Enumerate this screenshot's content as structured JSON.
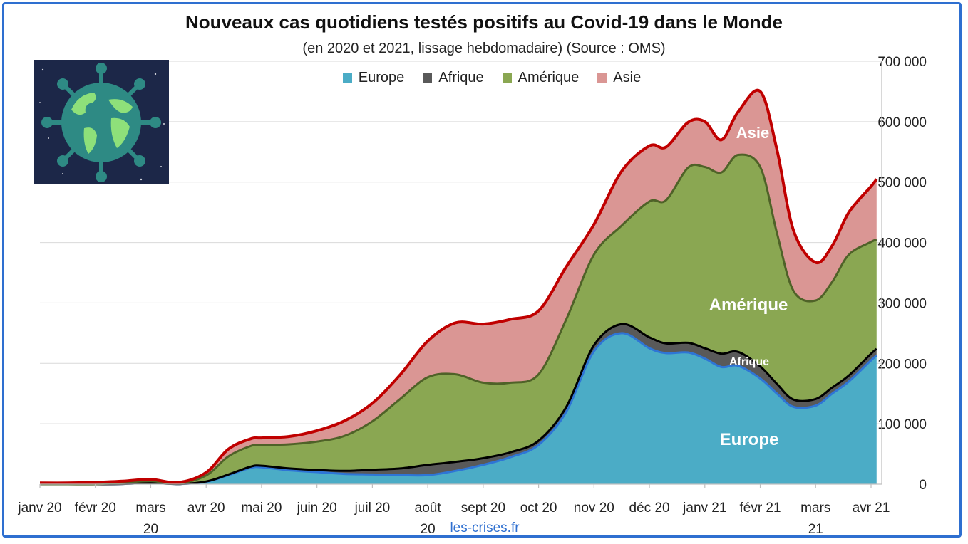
{
  "chart_data": {
    "type": "area",
    "stacked": true,
    "title": "Nouveaux cas quotidiens testés positifs au Covid-19 dans le Monde",
    "subtitle": "(en 2020 et 2021, lissage hebdomadaire) (Source : OMS)",
    "source_label": "les-crises.fr",
    "yaxis_position": "right",
    "ylim": [
      0,
      700000
    ],
    "yticks": [
      0,
      100000,
      200000,
      300000,
      400000,
      500000,
      600000,
      700000
    ],
    "ytick_labels": [
      "0",
      "100 000",
      "200 000",
      "300 000",
      "400 000",
      "500 000",
      "600 000",
      "700 000"
    ],
    "grid": true,
    "legend_placement": "top-center",
    "x_months": [
      "janv 20",
      "févr 20",
      "mars 20",
      "avr 20",
      "mai 20",
      "juin 20",
      "juil 20",
      "août 20",
      "sept 20",
      "oct 20",
      "nov 20",
      "déc 20",
      "janv 21",
      "févr 21",
      "mars 21",
      "avr 21"
    ],
    "x_month_label_lines": [
      [
        "janv 20"
      ],
      [
        "févr 20"
      ],
      [
        "mars",
        "20"
      ],
      [
        "avr 20"
      ],
      [
        "mai 20"
      ],
      [
        "juin 20"
      ],
      [
        "juil 20"
      ],
      [
        "août",
        "20"
      ],
      [
        "sept 20"
      ],
      [
        "oct 20"
      ],
      [
        "nov 20"
      ],
      [
        "déc 20"
      ],
      [
        "janv 21"
      ],
      [
        "févr 21"
      ],
      [
        "mars",
        "21"
      ],
      [
        "avr 21"
      ]
    ],
    "x": [
      0,
      0.5,
      1,
      1.5,
      2,
      2.5,
      3,
      3.4,
      3.8,
      4,
      4.5,
      5,
      5.5,
      6,
      6.5,
      7,
      7.5,
      8,
      8.5,
      9,
      9.5,
      10,
      10.5,
      11,
      11.3,
      11.7,
      12,
      12.3,
      12.6,
      13,
      13.3,
      13.6,
      14,
      14.3,
      14.6,
      15,
      15.1
    ],
    "x_unit": "months since janv 20",
    "series": [
      {
        "name": "Europe",
        "color": "#4bacc6",
        "line_color": "#2e75d6",
        "values": [
          0,
          0,
          0,
          500,
          2000,
          300,
          4000,
          15000,
          27000,
          28000,
          23000,
          20000,
          17000,
          16000,
          15000,
          15000,
          22000,
          32000,
          45000,
          65000,
          120000,
          220000,
          250000,
          225000,
          217000,
          218000,
          208000,
          194000,
          196000,
          175000,
          150000,
          128000,
          130000,
          150000,
          170000,
          205000,
          213000
        ]
      },
      {
        "name": "Afrique",
        "color": "#595959",
        "line_color": "#000000",
        "values": [
          0,
          0,
          0,
          0,
          0,
          0,
          500,
          1000,
          2000,
          2500,
          3000,
          3500,
          5000,
          8000,
          11000,
          17000,
          15000,
          11000,
          8000,
          7000,
          8000,
          10000,
          15000,
          18000,
          16000,
          16000,
          17000,
          22000,
          23000,
          20000,
          16000,
          12000,
          11000,
          10000,
          10000,
          11000,
          11000
        ]
      },
      {
        "name": "Amérique",
        "color": "#8aa752",
        "line_color": "#4f6228",
        "values": [
          0,
          0,
          0,
          2000,
          3000,
          1000,
          10000,
          30000,
          34000,
          34000,
          40000,
          47000,
          58000,
          80000,
          115000,
          145000,
          145000,
          125000,
          115000,
          110000,
          145000,
          150000,
          163000,
          225000,
          237000,
          290000,
          300000,
          300000,
          326000,
          330000,
          250000,
          180000,
          163000,
          175000,
          200000,
          185000,
          181000
        ]
      },
      {
        "name": "Asie",
        "color": "#da9694",
        "line_color": "#c00000",
        "values": [
          2000,
          2000,
          3000,
          2500,
          3000,
          1500,
          5000,
          12000,
          12000,
          12000,
          13000,
          18000,
          25000,
          30000,
          40000,
          60000,
          85000,
          97000,
          105000,
          105000,
          87000,
          50000,
          90000,
          92000,
          88000,
          75000,
          75000,
          54000,
          71000,
          125000,
          138000,
          100000,
          63000,
          60000,
          70000,
          92000,
          100000
        ]
      }
    ],
    "area_labels": {
      "europe": "Europe",
      "afrique": "Afrique",
      "amerique": "Amérique",
      "asie": "Asie"
    }
  },
  "colors": {
    "frame": "#2e6fd0",
    "grid": "#d9d9d9",
    "logo_bg": "#1c2748",
    "globe": "#2e8a84",
    "land": "#8ee07a"
  }
}
